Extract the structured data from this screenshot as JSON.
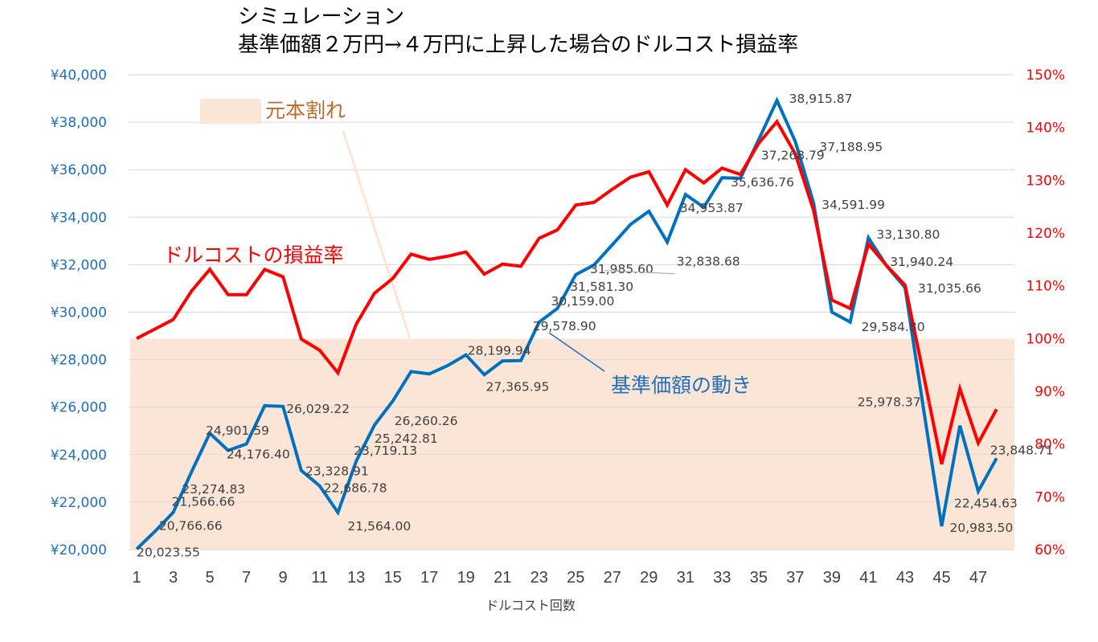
{
  "chart_data": {
    "type": "line",
    "title": [
      "シミュレーション",
      "基準価額２万円→４万円に上昇した場合のドルコスト損益率"
    ],
    "xlabel": "ドルコスト回数",
    "x": [
      1,
      2,
      3,
      4,
      5,
      6,
      7,
      8,
      9,
      10,
      11,
      12,
      13,
      14,
      15,
      16,
      17,
      18,
      19,
      20,
      21,
      22,
      23,
      24,
      25,
      26,
      27,
      28,
      29,
      30,
      31,
      32,
      33,
      34,
      35,
      36,
      37,
      38,
      39,
      40,
      41,
      42,
      43,
      44,
      45,
      46,
      47,
      48
    ],
    "x_tick_labels": [
      "1",
      "3",
      "5",
      "7",
      "9",
      "11",
      "13",
      "15",
      "17",
      "19",
      "21",
      "23",
      "25",
      "27",
      "29",
      "31",
      "33",
      "35",
      "37",
      "39",
      "41",
      "43",
      "45",
      "47"
    ],
    "y_left": {
      "range": [
        20000,
        40000
      ],
      "tick_labels": [
        "¥40,000",
        "¥38,000",
        "¥36,000",
        "¥34,000",
        "¥32,000",
        "¥30,000",
        "¥28,000",
        "¥26,000",
        "¥24,000",
        "¥22,000",
        "¥20,000"
      ],
      "color": "#1f6fbf"
    },
    "y_right": {
      "range": [
        0.6,
        1.5
      ],
      "tick_labels": [
        "150%",
        "140%",
        "130%",
        "120%",
        "110%",
        "100%",
        "90%",
        "80%",
        "70%",
        "60%"
      ],
      "color": "#ff0000"
    },
    "grid": true,
    "series": [
      {
        "name": "基準価額の動き",
        "axis": "left",
        "color": "#0070c0",
        "values": [
          20023.55,
          20766.66,
          21566.66,
          23274.83,
          24901.59,
          24176.4,
          24450,
          26060,
          26029.22,
          23328.91,
          22686.78,
          21564.0,
          23719.13,
          25242.81,
          26260.26,
          27500,
          27400,
          27750,
          28199.94,
          27365.95,
          27950,
          27960,
          29578.9,
          30159.0,
          31581.3,
          31985.6,
          32838.68,
          33700,
          34250,
          32950,
          34953.87,
          34420,
          35660,
          35636.76,
          37268.79,
          38915.87,
          37188.95,
          34591.99,
          30000,
          29584.8,
          33130.8,
          31940.24,
          31035.66,
          25978.37,
          20983.5,
          25220,
          22454.63,
          23848.71
        ]
      },
      {
        "name": "ドルコストの損益率",
        "axis": "right",
        "color": "#ff0000",
        "values": [
          1.0,
          1.018,
          1.036,
          1.09,
          1.131,
          1.083,
          1.083,
          1.131,
          1.117,
          0.999,
          0.978,
          0.935,
          1.027,
          1.086,
          1.114,
          1.16,
          1.15,
          1.156,
          1.164,
          1.122,
          1.141,
          1.137,
          1.19,
          1.206,
          1.253,
          1.258,
          1.283,
          1.306,
          1.316,
          1.253,
          1.32,
          1.295,
          1.323,
          1.311,
          1.37,
          1.411,
          1.35,
          1.243,
          1.073,
          1.057,
          1.179,
          1.138,
          1.101,
          0.933,
          0.762,
          0.905,
          0.802,
          0.866
        ]
      }
    ],
    "data_labels": [
      {
        "x": 1,
        "text": "20,023.55"
      },
      {
        "x": 2,
        "text": "20,766.66"
      },
      {
        "x": 3,
        "text": "21,566.66"
      },
      {
        "x": 4,
        "text": "23,274.83"
      },
      {
        "x": 5,
        "text": "24,901.59"
      },
      {
        "x": 6,
        "text": "24,176.40"
      },
      {
        "x": 9,
        "text": "26,029.22"
      },
      {
        "x": 10,
        "text": "23,328.91"
      },
      {
        "x": 11,
        "text": "22,686.78"
      },
      {
        "x": 12,
        "text": "21,564.00"
      },
      {
        "x": 13,
        "text": "23,719.13"
      },
      {
        "x": 14,
        "text": "25,242.81"
      },
      {
        "x": 15,
        "text": "26,260.26"
      },
      {
        "x": 19,
        "text": "28,199.94"
      },
      {
        "x": 20,
        "text": "27,365.95"
      },
      {
        "x": 23,
        "text": "29,578.90"
      },
      {
        "x": 24,
        "text": "30,159.00"
      },
      {
        "x": 25,
        "text": "31,581.30"
      },
      {
        "x": 26,
        "text": "31,985.60"
      },
      {
        "x": 27,
        "text": "32,838.68"
      },
      {
        "x": 31,
        "text": "34,953.87"
      },
      {
        "x": 34,
        "text": "35,636.76"
      },
      {
        "x": 35,
        "text": "37,268.79"
      },
      {
        "x": 36,
        "text": "38,915.87"
      },
      {
        "x": 37,
        "text": "37,188.95"
      },
      {
        "x": 38,
        "text": "34,591.99"
      },
      {
        "x": 40,
        "text": "29,584.80"
      },
      {
        "x": 41,
        "text": "33,130.80"
      },
      {
        "x": 42,
        "text": "31,940.24"
      },
      {
        "x": 43,
        "text": "31,035.66"
      },
      {
        "x": 44,
        "text": "25,978.37"
      },
      {
        "x": 45,
        "text": "20,983.50"
      },
      {
        "x": 47,
        "text": "22,454.63"
      },
      {
        "x": 48,
        "text": "23,848.71"
      }
    ],
    "shaded_region": {
      "label": "元本割れ",
      "y_right_range": [
        0.6,
        1.0
      ],
      "color": "#fbe5d6"
    },
    "annotations": [
      {
        "text": "元本割れ",
        "color": "#c0692a"
      },
      {
        "text": "ドルコストの損益率",
        "color": "#ff0000"
      },
      {
        "text": "基準価額の動き",
        "color": "#1f6fbf"
      }
    ]
  }
}
